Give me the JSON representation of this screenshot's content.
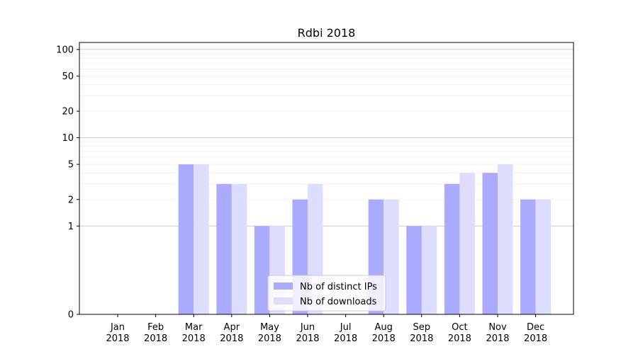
{
  "chart_data": {
    "type": "bar",
    "title": "Rdbi 2018",
    "xlabel": "",
    "ylabel": "",
    "y_scale": "symlog",
    "ylim": [
      0,
      120
    ],
    "y_ticks": [
      0,
      1,
      2,
      5,
      10,
      20,
      50,
      100
    ],
    "grid": "y",
    "legend_position": "lower-center",
    "categories": [
      "Jan\n2018",
      "Feb\n2018",
      "Mar\n2018",
      "Apr\n2018",
      "May\n2018",
      "Jun\n2018",
      "Jul\n2018",
      "Aug\n2018",
      "Sep\n2018",
      "Oct\n2018",
      "Nov\n2018",
      "Dec\n2018"
    ],
    "series": [
      {
        "name": "Nb of distinct IPs",
        "color": "#aaaaff",
        "values": [
          0,
          0,
          5,
          3,
          1,
          2,
          0,
          2,
          1,
          3,
          4,
          2
        ]
      },
      {
        "name": "Nb of downloads",
        "color": "#ddddff",
        "values": [
          0,
          0,
          5,
          3,
          1,
          3,
          0,
          2,
          1,
          4,
          5,
          2
        ]
      }
    ]
  }
}
